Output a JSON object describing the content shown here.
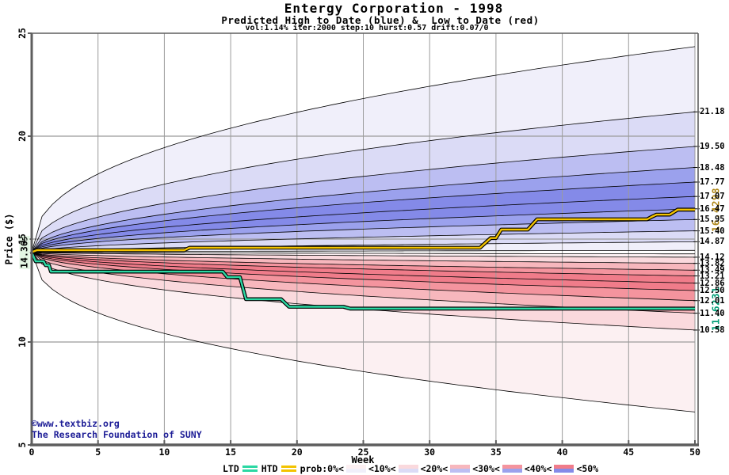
{
  "watermark": {
    "line1": "©www.textbiz.org",
    "line2": "The Research Foundation of SUNY",
    "color": "#1c1c96"
  },
  "legend": {
    "ltd_label": "LTD",
    "htd_label": "HTD",
    "prob_label": "prob:0%<",
    "band_labels": [
      "<10%<",
      "<20%<",
      "<30%<",
      "<40%<",
      "<50%"
    ]
  },
  "chart_data": {
    "type": "area",
    "chart_kind": "monte-carlo-fan",
    "title": "Entergy Corporation - 1998",
    "subtitle": "Predicted High to Date (blue) &  Low to Date (red)",
    "params": "vol:1.14% iter:2000 step:10 hurst:0.57 drift:0.07/0",
    "xlabel": "Week",
    "ylabel": "Price ($)",
    "xlim": [
      0,
      50
    ],
    "ylim": [
      5,
      25
    ],
    "grid": true,
    "x_ticks": [
      0,
      5,
      10,
      15,
      20,
      25,
      30,
      35,
      40,
      45,
      50
    ],
    "y_ticks": [
      5,
      10,
      15,
      20,
      25
    ],
    "start_value": 14.365,
    "start_label": {
      "text": "14.36",
      "sub": "5"
    },
    "band_colors": {
      "blue": [
        "#f0effa",
        "#dbdbf6",
        "#bcbef2",
        "#9ba1ed",
        "#848ae8"
      ],
      "red": [
        "#fcf0f2",
        "#fad9dd",
        "#f7b7bd",
        "#f4949e",
        "#f07c8a"
      ]
    },
    "high_fan": {
      "name": "Predicted High to Date",
      "side": "blue",
      "edges": [
        {
          "v": 14.45,
          "curve": 0.6
        },
        {
          "v": 14.87,
          "label": "14.87",
          "curve": 0.55
        },
        {
          "v": 15.4,
          "label": "15.40",
          "curve": 0.52
        },
        {
          "v": 15.95,
          "label": "15.95",
          "curve": 0.5
        },
        {
          "v": 16.47,
          "label": "16.47",
          "curve": 0.5
        },
        {
          "v": 17.07,
          "label": "17.07",
          "curve": 0.5
        },
        {
          "v": 17.77,
          "label": "17.77",
          "curve": 0.5
        },
        {
          "v": 18.48,
          "label": "18.48",
          "curve": 0.5
        },
        {
          "v": 19.5,
          "label": "19.50",
          "curve": 0.48
        },
        {
          "v": 21.18,
          "label": "21.18",
          "curve": 0.45
        },
        {
          "v": 24.35,
          "curve": 0.42
        }
      ]
    },
    "low_fan": {
      "name": "Predicted Low to Date",
      "side": "red",
      "edges": [
        {
          "v": 14.28,
          "curve": 0.6
        },
        {
          "v": 14.12,
          "label": "14.12",
          "curve": 0.55
        },
        {
          "v": 13.82,
          "label": "13.82",
          "curve": 0.52
        },
        {
          "v": 13.49,
          "label": "13.49",
          "curve": 0.5
        },
        {
          "v": 13.21,
          "label": "13.21",
          "curve": 0.5
        },
        {
          "v": 12.86,
          "label": "12.86",
          "curve": 0.5
        },
        {
          "v": 12.5,
          "label": "12.50",
          "curve": 0.5
        },
        {
          "v": 12.01,
          "label": "12.01",
          "curve": 0.5
        },
        {
          "v": 11.4,
          "label": "11.40",
          "curve": 0.48
        },
        {
          "v": 10.58,
          "label": "10.58",
          "curve": 0.45
        },
        {
          "v": 6.6,
          "curve": 0.42
        }
      ]
    },
    "htd_line": {
      "name": "HTD",
      "color": "#f3c300",
      "final_label": "16.4298",
      "final_value": 16.4298,
      "points": [
        [
          0,
          14.365
        ],
        [
          0.4,
          14.46
        ],
        [
          11.5,
          14.46
        ],
        [
          11.9,
          14.58
        ],
        [
          33.8,
          14.58
        ],
        [
          34.6,
          15.05
        ],
        [
          35.0,
          15.05
        ],
        [
          35.4,
          15.46
        ],
        [
          37.4,
          15.46
        ],
        [
          38.1,
          15.96
        ],
        [
          46.4,
          15.96
        ],
        [
          46.8,
          16.1
        ],
        [
          47.1,
          16.19
        ],
        [
          48.1,
          16.19
        ],
        [
          48.7,
          16.43
        ],
        [
          50,
          16.43
        ]
      ]
    },
    "ltd_line": {
      "name": "LTD",
      "color": "#2bd8a3",
      "final_label": "11.6231",
      "final_value": 11.6231,
      "points": [
        [
          0,
          14.365
        ],
        [
          0.3,
          13.92
        ],
        [
          0.9,
          13.92
        ],
        [
          1.05,
          13.73
        ],
        [
          1.3,
          13.73
        ],
        [
          1.45,
          13.42
        ],
        [
          14.4,
          13.42
        ],
        [
          14.75,
          13.15
        ],
        [
          15.7,
          13.15
        ],
        [
          16.15,
          12.08
        ],
        [
          18.8,
          12.08
        ],
        [
          19.4,
          11.71
        ],
        [
          23.5,
          11.71
        ],
        [
          24,
          11.6231
        ],
        [
          50,
          11.6231
        ]
      ]
    }
  }
}
